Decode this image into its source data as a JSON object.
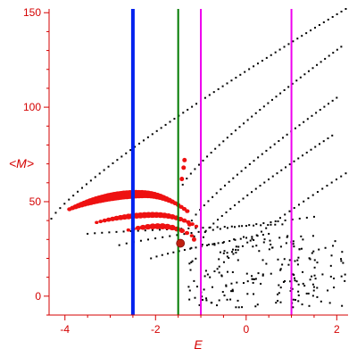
{
  "chart_data": {
    "type": "scatter",
    "title": "",
    "xlabel": "E",
    "ylabel": "<M>",
    "xlim": [
      -4.35,
      2.25
    ],
    "ylim": [
      -10,
      152
    ],
    "x_ticks": [
      -4,
      -2,
      0,
      2
    ],
    "x_tick_labels": [
      "-4",
      "-2",
      "0",
      "2"
    ],
    "y_ticks": [
      0,
      50,
      100,
      150
    ],
    "y_tick_labels": [
      "0",
      "50",
      "100",
      "150"
    ],
    "grid": false,
    "legend": "none",
    "colors": {
      "axis": "#d40000",
      "black_points": "#000000",
      "red_points": "#ee1111",
      "blue_line": "#0022ee",
      "green_line": "#007a00",
      "magenta_line": "#ee00ee",
      "highlight_point": "#c02010"
    },
    "vertical_lines": [
      {
        "x": -2.5,
        "color": "#0022ee",
        "width": 4
      },
      {
        "x": -1.5,
        "color": "#007a00",
        "width": 2
      },
      {
        "x": -1.0,
        "color": "#ee00ee",
        "width": 2
      },
      {
        "x": 1.0,
        "color": "#ee00ee",
        "width": 2
      }
    ],
    "highlight_point": {
      "x": -1.45,
      "y": 28,
      "color": "#c02010"
    },
    "series": [
      {
        "marker": "black-dot",
        "bands": [
          {
            "x_start": -4.3,
            "x_end": 2.2,
            "y_start": 41,
            "y_end": 152,
            "count": 68
          },
          {
            "x_start": -1.4,
            "x_end": 2.1,
            "y_start": 59,
            "y_end": 132,
            "count": 40
          },
          {
            "x_start": -1.2,
            "x_end": 2.0,
            "y_start": 40,
            "y_end": 105,
            "count": 36
          },
          {
            "x_start": -1.0,
            "x_end": 1.9,
            "y_start": 31,
            "y_end": 85,
            "count": 32
          },
          {
            "x_start": -3.5,
            "x_end": 0.8,
            "y_start": 33,
            "y_end": 38,
            "count": 28
          },
          {
            "x_start": -2.8,
            "x_end": 1.5,
            "y_start": 27,
            "y_end": 42,
            "count": 28
          },
          {
            "x_start": -2.1,
            "x_end": 0.5,
            "y_start": 20,
            "y_end": 33,
            "count": 22
          },
          {
            "x_start": -0.8,
            "x_end": 2.2,
            "y_start": 10,
            "y_end": 65,
            "count": 30
          }
        ],
        "scatter_region": {
          "x": [
            -1.3,
            2.2
          ],
          "y": [
            -6,
            32
          ],
          "count": 200
        }
      },
      {
        "marker": "red-blob",
        "bands": [
          {
            "x_start": -3.9,
            "x_end": -1.3,
            "y_start": 46,
            "y_end": 45,
            "peak_x": -2.3,
            "peak_y": 54,
            "count": 40
          },
          {
            "x_start": -3.3,
            "x_end": -1.1,
            "y_start": 39,
            "y_end": 37,
            "peak_x": -2.0,
            "peak_y": 43,
            "count": 26
          },
          {
            "x_start": -2.6,
            "x_end": -1.2,
            "y_start": 35,
            "y_end": 32,
            "peak_x": -1.9,
            "peak_y": 37,
            "count": 14
          }
        ],
        "vertical_points": [
          {
            "x": -1.42,
            "y": 62
          },
          {
            "x": -1.38,
            "y": 68
          },
          {
            "x": -1.36,
            "y": 72
          },
          {
            "x": -1.25,
            "y": 38
          },
          {
            "x": -1.15,
            "y": 30
          }
        ]
      }
    ]
  }
}
